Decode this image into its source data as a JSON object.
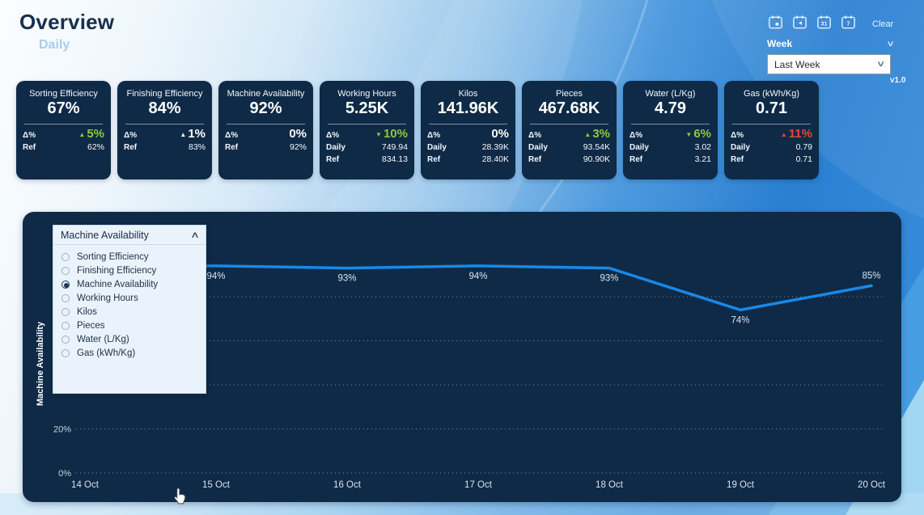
{
  "header": {
    "title": "Overview",
    "subtitle": "Daily"
  },
  "toolbar": {
    "icons": [
      {
        "name": "calendar-today-icon",
        "glyph": "dot"
      },
      {
        "name": "calendar-previous-icon",
        "glyph": "back"
      },
      {
        "name": "calendar-month-icon",
        "glyph": "31"
      },
      {
        "name": "calendar-week-icon",
        "glyph": "7"
      }
    ],
    "clear_label": "Clear",
    "week_label": "Week",
    "week_value": "Last Week",
    "version": "v1.0"
  },
  "cards_common": {
    "delta_label": "Δ%"
  },
  "colors": {
    "positive": "#8BCB3B",
    "neutral": "#FFFFFF",
    "negative": "#E8453A",
    "card_bg": "#0F2A46",
    "line": "#1789E8"
  },
  "cards": [
    {
      "title": "Sorting Efficiency",
      "value": "67%",
      "delta": {
        "arrow": "▲",
        "text": "5%",
        "color": "#8BCB3B"
      },
      "rows": [
        {
          "label": "Ref",
          "value": "62%"
        }
      ]
    },
    {
      "title": "Finishing Efficiency",
      "value": "84%",
      "delta": {
        "arrow": "▲",
        "text": "1%",
        "color": "#FFFFFF"
      },
      "rows": [
        {
          "label": "Ref",
          "value": "83%"
        }
      ]
    },
    {
      "title": "Machine Availability",
      "value": "92%",
      "delta": {
        "arrow": "",
        "text": "0%",
        "color": "#FFFFFF"
      },
      "rows": [
        {
          "label": "Ref",
          "value": "92%"
        }
      ]
    },
    {
      "title": "Working Hours",
      "value": "5.25K",
      "delta": {
        "arrow": "▼",
        "text": "10%",
        "color": "#8BCB3B"
      },
      "rows": [
        {
          "label": "Daily",
          "value": "749.94"
        },
        {
          "label": "Ref",
          "value": "834.13"
        }
      ]
    },
    {
      "title": "Kilos",
      "value": "141.96K",
      "delta": {
        "arrow": "",
        "text": "0%",
        "color": "#FFFFFF"
      },
      "rows": [
        {
          "label": "Daily",
          "value": "28.39K"
        },
        {
          "label": "Ref",
          "value": "28.40K"
        }
      ]
    },
    {
      "title": "Pieces",
      "value": "467.68K",
      "delta": {
        "arrow": "▲",
        "text": "3%",
        "color": "#8BCB3B"
      },
      "rows": [
        {
          "label": "Daily",
          "value": "93.54K"
        },
        {
          "label": "Ref",
          "value": "90.90K"
        }
      ]
    },
    {
      "title": "Water (L/Kg)",
      "value": "4.79",
      "delta": {
        "arrow": "▼",
        "text": "6%",
        "color": "#8BCB3B"
      },
      "rows": [
        {
          "label": "Daily",
          "value": "3.02"
        },
        {
          "label": "Ref",
          "value": "3.21"
        }
      ]
    },
    {
      "title": "Gas (kWh/Kg)",
      "value": "0.71",
      "delta": {
        "arrow": "▲",
        "text": "11%",
        "color": "#E8453A"
      },
      "rows": [
        {
          "label": "Daily",
          "value": "0.79"
        },
        {
          "label": "Ref",
          "value": "0.71"
        }
      ]
    }
  ],
  "slicer": {
    "selected": "Machine Availability",
    "options": [
      "Sorting Efficiency",
      "Finishing Efficiency",
      "Machine Availability",
      "Working Hours",
      "Kilos",
      "Pieces",
      "Water (L/Kg)",
      "Gas (kWh/Kg)"
    ]
  },
  "chart_data": {
    "type": "line",
    "ylabel": "Machine Availability",
    "categories": [
      "14 Oct",
      "15 Oct",
      "16 Oct",
      "17 Oct",
      "18 Oct",
      "19 Oct",
      "20 Oct"
    ],
    "values": [
      94,
      94,
      93,
      94,
      93,
      74,
      85
    ],
    "point_labels": [
      "",
      "94%",
      "93%",
      "94%",
      "93%",
      "74%",
      "85%"
    ],
    "label_position": [
      "none",
      "below",
      "below",
      "below",
      "below",
      "below",
      "above"
    ],
    "ylim": [
      0,
      100
    ],
    "ytick_interval": 20,
    "visible_yticks": [
      "20%",
      "0%"
    ],
    "grid": "dotted",
    "legend": "none",
    "line_color": "#1789E8",
    "note": "14 Oct data point and upper y-axis ticks are covered by the open slicer dropdown"
  }
}
